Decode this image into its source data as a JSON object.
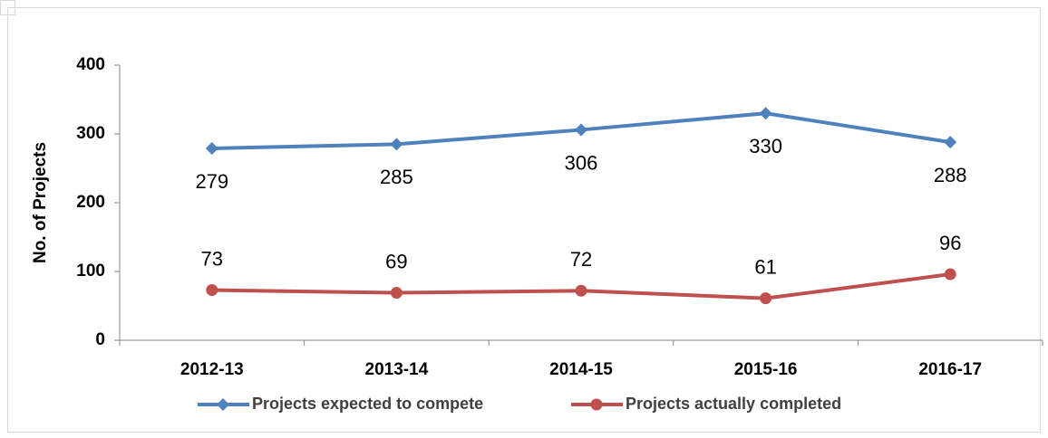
{
  "chart_data": {
    "type": "line",
    "ylabel": "No. of Projects",
    "categories": [
      "2012-13",
      "2013-14",
      "2014-15",
      "2015-16",
      "2016-17"
    ],
    "series": [
      {
        "name": "Projects expected to compete",
        "color": "#4f81bd",
        "marker": "diamond",
        "values": [
          279,
          285,
          306,
          330,
          288
        ]
      },
      {
        "name": "Projects actually completed",
        "color": "#c0504d",
        "marker": "circle",
        "values": [
          73,
          69,
          72,
          61,
          96
        ]
      }
    ],
    "ylim": [
      0,
      400
    ],
    "yticks": [
      0,
      100,
      200,
      300,
      400
    ],
    "grid": false,
    "legend": "bottom"
  }
}
